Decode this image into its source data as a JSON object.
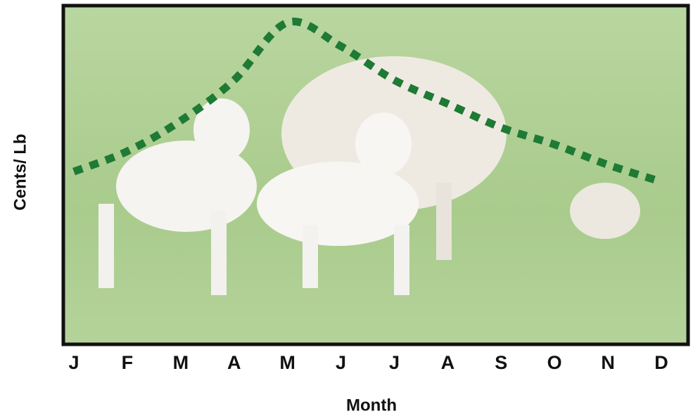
{
  "chart_data": {
    "type": "line",
    "x_label": "Month",
    "y_label": "Cents/ Lb",
    "categories": [
      "J",
      "F",
      "M",
      "A",
      "M",
      "J",
      "J",
      "A",
      "S",
      "O",
      "N",
      "D"
    ],
    "series": [
      {
        "color": "#1e7a34",
        "values": [
          51,
          57,
          66,
          78,
          95,
          88,
          78,
          71,
          64,
          59,
          53,
          48
        ]
      }
    ],
    "ylim": [
      0,
      100
    ]
  }
}
